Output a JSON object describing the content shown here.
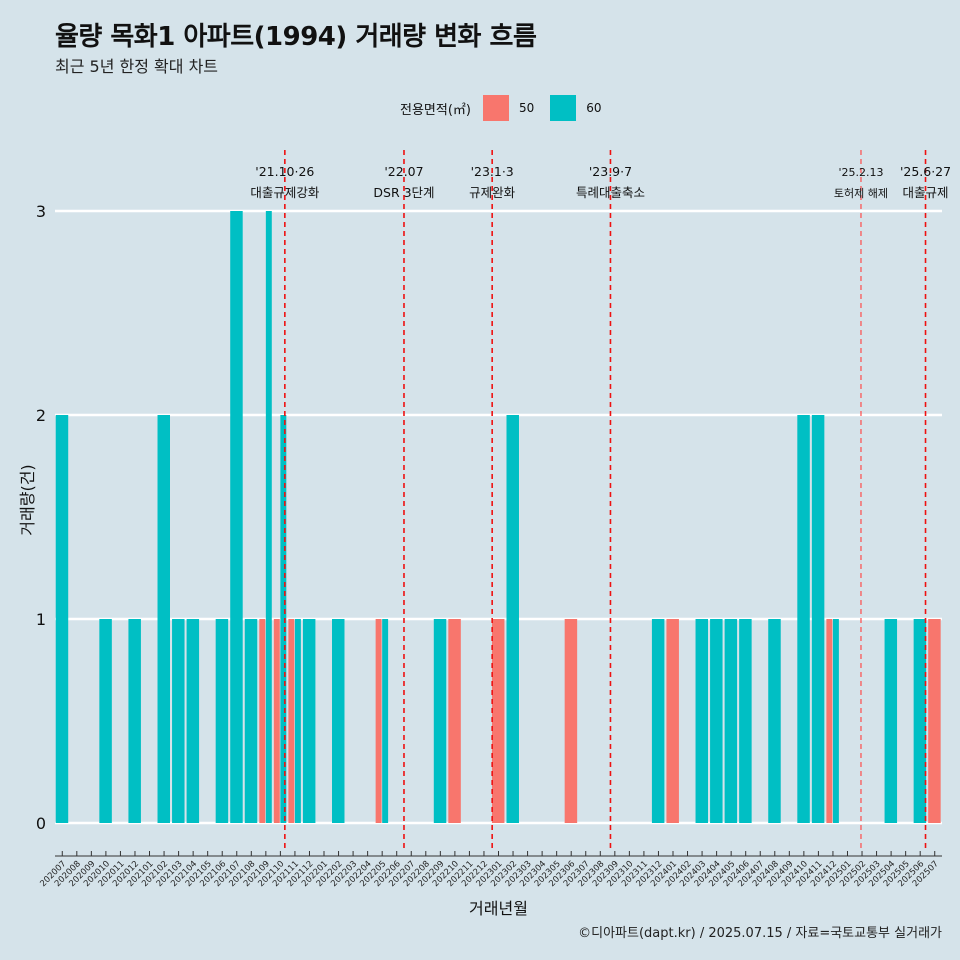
{
  "title": "율량 목화1 아파트(1994) 거래량 변화 흐름",
  "subtitle": "최근 5년 한정 확대 차트",
  "caption": "©디아파트(dapt.kr) / 2025.07.15 / 자료=국토교통부 실거래가",
  "legend": {
    "title": "전용면적(㎡)",
    "items": [
      {
        "label": "50",
        "color": "#F8766D"
      },
      {
        "label": "60",
        "color": "#00BFC4"
      }
    ]
  },
  "chart_data": {
    "type": "bar",
    "xlabel": "거래년월",
    "ylabel": "거래량(건)",
    "ylim": [
      0,
      3
    ],
    "yticks": [
      0,
      1,
      2,
      3
    ],
    "categories": [
      "202007",
      "202008",
      "202009",
      "202010",
      "202011",
      "202012",
      "202101",
      "202102",
      "202103",
      "202104",
      "202105",
      "202106",
      "202107",
      "202108",
      "202109",
      "202110",
      "202111",
      "202112",
      "202201",
      "202202",
      "202203",
      "202204",
      "202205",
      "202206",
      "202207",
      "202208",
      "202209",
      "202210",
      "202211",
      "202212",
      "202301",
      "202302",
      "202303",
      "202304",
      "202305",
      "202306",
      "202307",
      "202308",
      "202309",
      "202310",
      "202311",
      "202312",
      "202401",
      "202402",
      "202403",
      "202404",
      "202405",
      "202406",
      "202407",
      "202408",
      "202409",
      "202410",
      "202411",
      "202412",
      "202501",
      "202502",
      "202503",
      "202504",
      "202505",
      "202506",
      "202507"
    ],
    "bars": [
      {
        "month": "202007",
        "area": "60",
        "value": 2
      },
      {
        "month": "202010",
        "area": "60",
        "value": 1
      },
      {
        "month": "202012",
        "area": "60",
        "value": 1
      },
      {
        "month": "202102",
        "area": "60",
        "value": 2
      },
      {
        "month": "202103",
        "area": "60",
        "value": 1
      },
      {
        "month": "202104",
        "area": "60",
        "value": 1
      },
      {
        "month": "202106",
        "area": "60",
        "value": 1
      },
      {
        "month": "202107",
        "area": "60",
        "value": 3
      },
      {
        "month": "202108",
        "area": "60",
        "value": 1
      },
      {
        "month": "202109",
        "area": "50",
        "value": 1
      },
      {
        "month": "202109",
        "area": "60",
        "value": 3
      },
      {
        "month": "202110",
        "area": "50",
        "value": 1
      },
      {
        "month": "202110",
        "area": "60",
        "value": 2
      },
      {
        "month": "202111",
        "area": "50",
        "value": 1
      },
      {
        "month": "202111",
        "area": "60",
        "value": 1
      },
      {
        "month": "202112",
        "area": "60",
        "value": 1
      },
      {
        "month": "202202",
        "area": "60",
        "value": 1
      },
      {
        "month": "202205",
        "area": "50",
        "value": 1
      },
      {
        "month": "202205",
        "area": "60",
        "value": 1
      },
      {
        "month": "202209",
        "area": "60",
        "value": 1
      },
      {
        "month": "202210",
        "area": "50",
        "value": 1
      },
      {
        "month": "202301",
        "area": "50",
        "value": 1
      },
      {
        "month": "202302",
        "area": "60",
        "value": 2
      },
      {
        "month": "202306",
        "area": "50",
        "value": 1
      },
      {
        "month": "202312",
        "area": "60",
        "value": 1
      },
      {
        "month": "202401",
        "area": "50",
        "value": 1
      },
      {
        "month": "202403",
        "area": "60",
        "value": 1
      },
      {
        "month": "202404",
        "area": "60",
        "value": 1
      },
      {
        "month": "202405",
        "area": "60",
        "value": 1
      },
      {
        "month": "202406",
        "area": "60",
        "value": 1
      },
      {
        "month": "202408",
        "area": "60",
        "value": 1
      },
      {
        "month": "202410",
        "area": "60",
        "value": 2
      },
      {
        "month": "202411",
        "area": "60",
        "value": 2
      },
      {
        "month": "202412",
        "area": "50",
        "value": 1
      },
      {
        "month": "202412",
        "area": "60",
        "value": 1
      },
      {
        "month": "202504",
        "area": "60",
        "value": 1
      },
      {
        "month": "202506",
        "area": "60",
        "value": 1
      },
      {
        "month": "202507",
        "area": "50",
        "value": 1
      }
    ],
    "events": [
      {
        "date": "2021-10-26",
        "label1": "'21.10·26",
        "label2": "대출규제강화"
      },
      {
        "date": "2022-07-01",
        "label1": "'22.07",
        "label2": "DSR 3단계"
      },
      {
        "date": "2023-01-03",
        "label1": "'23.1·3",
        "label2": "규제완화"
      },
      {
        "date": "2023-09-07",
        "label1": "'23.9·7",
        "label2": "특례대출축소"
      },
      {
        "date": "2025-02-13",
        "label1": "'25.2.13",
        "label2": "토허제 해제",
        "small": true
      },
      {
        "date": "2025-06-27",
        "label1": "'25.6·27",
        "label2": "대출규제"
      }
    ]
  }
}
